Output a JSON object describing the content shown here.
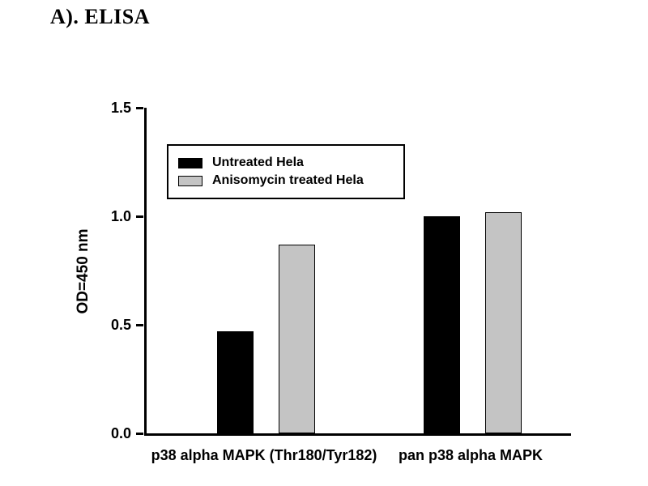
{
  "figure": {
    "panel_label": "A). ELISA"
  },
  "chart_data": {
    "type": "bar",
    "title": "A). ELISA",
    "categories": [
      "p38 alpha MAPK (Thr180/Tyr182)",
      "pan p38 alpha MAPK"
    ],
    "series": [
      {
        "name": "Untreated Hela",
        "color": "#000000",
        "values": [
          0.47,
          1.0
        ]
      },
      {
        "name": "Anisomycin treated Hela",
        "color": "#c4c4c4",
        "values": [
          0.87,
          1.02
        ]
      }
    ],
    "xlabel": "",
    "ylabel": "OD=450 nm",
    "ylim": [
      0,
      1.5
    ],
    "yticks": [
      0.0,
      0.5,
      1.0,
      1.5
    ],
    "ytick_labels": [
      "0.0",
      "0.5",
      "1.0",
      "1.5"
    ],
    "legend_position": "upper-left-inside",
    "grid": false
  }
}
